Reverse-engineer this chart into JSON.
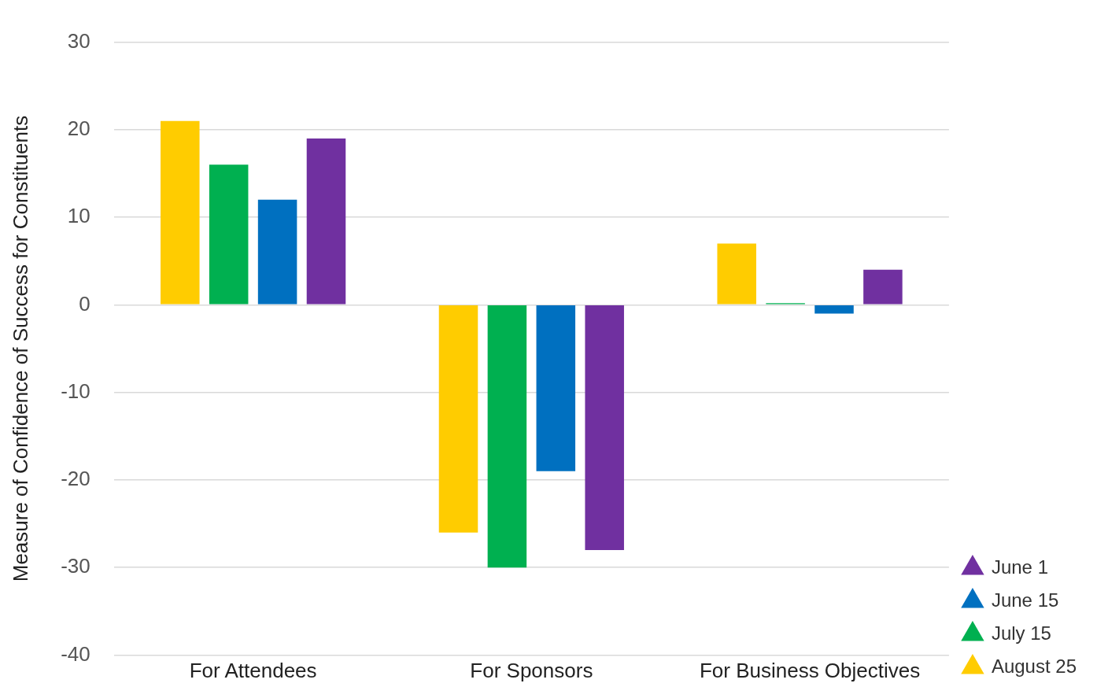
{
  "chart_data": {
    "type": "bar",
    "ylabel": "Measure of Confidence of Success for Constituents",
    "categories": [
      "For Attendees",
      "For Sponsors",
      "For Business Objectives"
    ],
    "series": [
      {
        "name": "August 25",
        "color": "#ffcc00",
        "values": [
          21,
          -26,
          7
        ]
      },
      {
        "name": "July 15",
        "color": "#00b050",
        "values": [
          16,
          -30,
          0.2
        ]
      },
      {
        "name": "June 15",
        "color": "#0070c0",
        "values": [
          12,
          -19,
          -1
        ]
      },
      {
        "name": "June 1",
        "color": "#7030a0",
        "values": [
          19,
          -28,
          4
        ]
      }
    ],
    "ylim": [
      -40,
      30
    ],
    "yticks": [
      -40,
      -30,
      -20,
      -10,
      0,
      10,
      20,
      30
    ],
    "grid": "y",
    "legend": "bottom right",
    "marker": "triangle"
  }
}
